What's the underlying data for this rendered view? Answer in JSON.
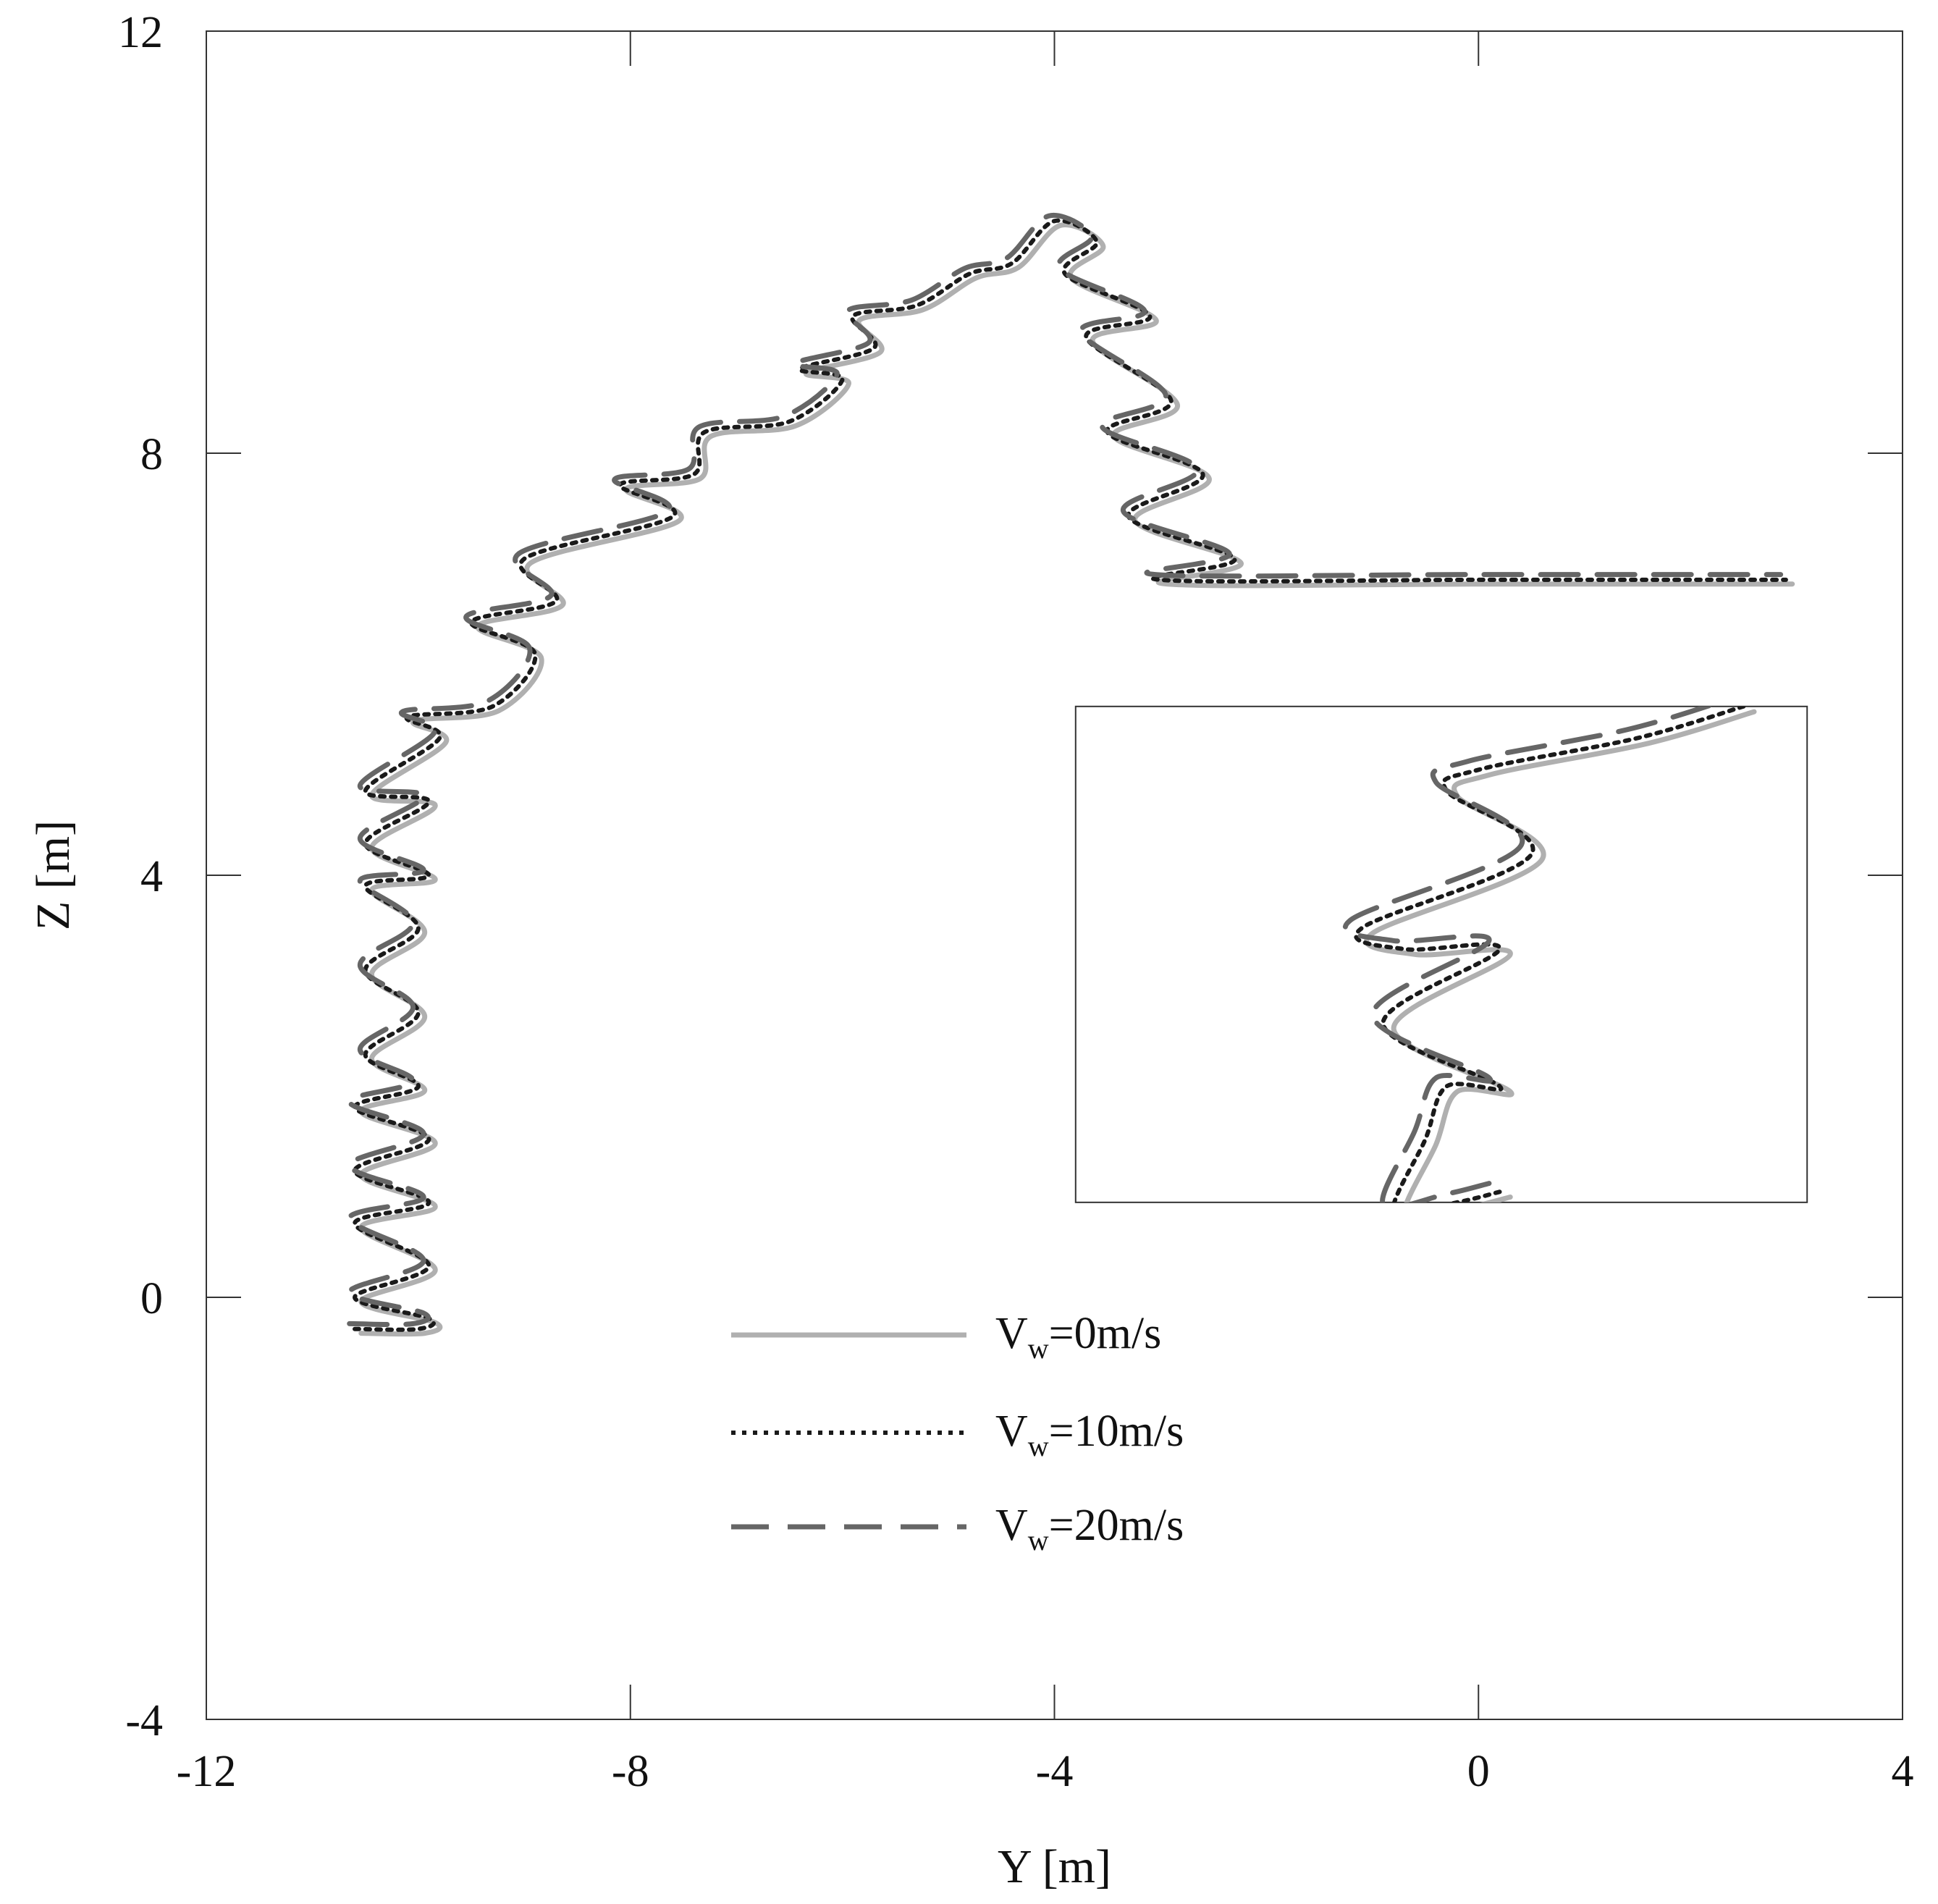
{
  "chart_data": {
    "type": "line",
    "xlabel": "Y [m]",
    "ylabel": "Z [m]",
    "xlim": [
      -12,
      4
    ],
    "ylim": [
      -4,
      12
    ],
    "xticks": [
      -12,
      -8,
      -4,
      0,
      4
    ],
    "yticks": [
      -4,
      0,
      4,
      8,
      12
    ],
    "grid": false,
    "legend_position": "bottom-center",
    "legend": [
      {
        "prefix": "V",
        "sub": "w",
        "suffix": "=0m/s"
      },
      {
        "prefix": "V",
        "sub": "w",
        "suffix": "=10m/s"
      },
      {
        "prefix": "V",
        "sub": "w",
        "suffix": "=20m/s"
      }
    ],
    "series": [
      {
        "name": "Vw=0m/s",
        "color": "#b0b0b0",
        "dash": "solid"
      },
      {
        "name": "Vw=10m/s",
        "color": "#1a1a1a",
        "dash": "dotted"
      },
      {
        "name": "Vw=20m/s",
        "color": "#666666",
        "dash": "dashed"
      }
    ],
    "path": [
      [
        -10.6,
        -0.3
      ],
      [
        -10.0,
        -0.3
      ],
      [
        -9.9,
        -0.2
      ],
      [
        -10.6,
        -0.0
      ],
      [
        -9.9,
        0.3
      ],
      [
        -10.6,
        0.7
      ],
      [
        -9.9,
        0.9
      ],
      [
        -10.6,
        1.2
      ],
      [
        -9.9,
        1.5
      ],
      [
        -10.6,
        1.8
      ],
      [
        -10.0,
        2.0
      ],
      [
        -10.5,
        2.3
      ],
      [
        -10.0,
        2.7
      ],
      [
        -10.5,
        3.1
      ],
      [
        -10.0,
        3.5
      ],
      [
        -10.5,
        3.9
      ],
      [
        -9.9,
        4.0
      ],
      [
        -10.5,
        4.3
      ],
      [
        -9.9,
        4.7
      ],
      [
        -10.5,
        4.8
      ],
      [
        -9.8,
        5.3
      ],
      [
        -10.1,
        5.5
      ],
      [
        -9.3,
        5.6
      ],
      [
        -8.9,
        6.1
      ],
      [
        -9.5,
        6.4
      ],
      [
        -8.7,
        6.6
      ],
      [
        -9.0,
        7.0
      ],
      [
        -7.6,
        7.4
      ],
      [
        -8.1,
        7.7
      ],
      [
        -7.4,
        7.8
      ],
      [
        -7.3,
        8.2
      ],
      [
        -6.5,
        8.3
      ],
      [
        -6.0,
        8.7
      ],
      [
        -6.4,
        8.8
      ],
      [
        -5.7,
        9.0
      ],
      [
        -5.9,
        9.3
      ],
      [
        -5.3,
        9.4
      ],
      [
        -4.8,
        9.7
      ],
      [
        -4.4,
        9.8
      ],
      [
        -4.0,
        10.2
      ],
      [
        -3.6,
        10.0
      ],
      [
        -3.9,
        9.7
      ],
      [
        -3.1,
        9.3
      ],
      [
        -3.7,
        9.1
      ],
      [
        -2.9,
        8.5
      ],
      [
        -3.5,
        8.2
      ],
      [
        -2.6,
        7.8
      ],
      [
        -3.3,
        7.4
      ],
      [
        -2.3,
        7.0
      ],
      [
        -3.0,
        6.8
      ],
      [
        0.0,
        6.8
      ],
      [
        2.9,
        6.8
      ]
    ],
    "inset": {
      "path": [
        [
          0.2,
          1.0
        ],
        [
          -0.2,
          0.9
        ],
        [
          -0.8,
          0.8
        ],
        [
          -0.5,
          1.5
        ],
        [
          -0.3,
          2.0
        ],
        [
          0.2,
          2.0
        ],
        [
          -0.9,
          2.6
        ],
        [
          0.2,
          3.3
        ],
        [
          -0.7,
          3.3
        ],
        [
          -1.1,
          3.5
        ],
        [
          0.5,
          4.2
        ],
        [
          -0.3,
          4.8
        ],
        [
          0.0,
          5.0
        ],
        [
          1.5,
          5.3
        ],
        [
          2.5,
          5.6
        ]
      ]
    }
  }
}
